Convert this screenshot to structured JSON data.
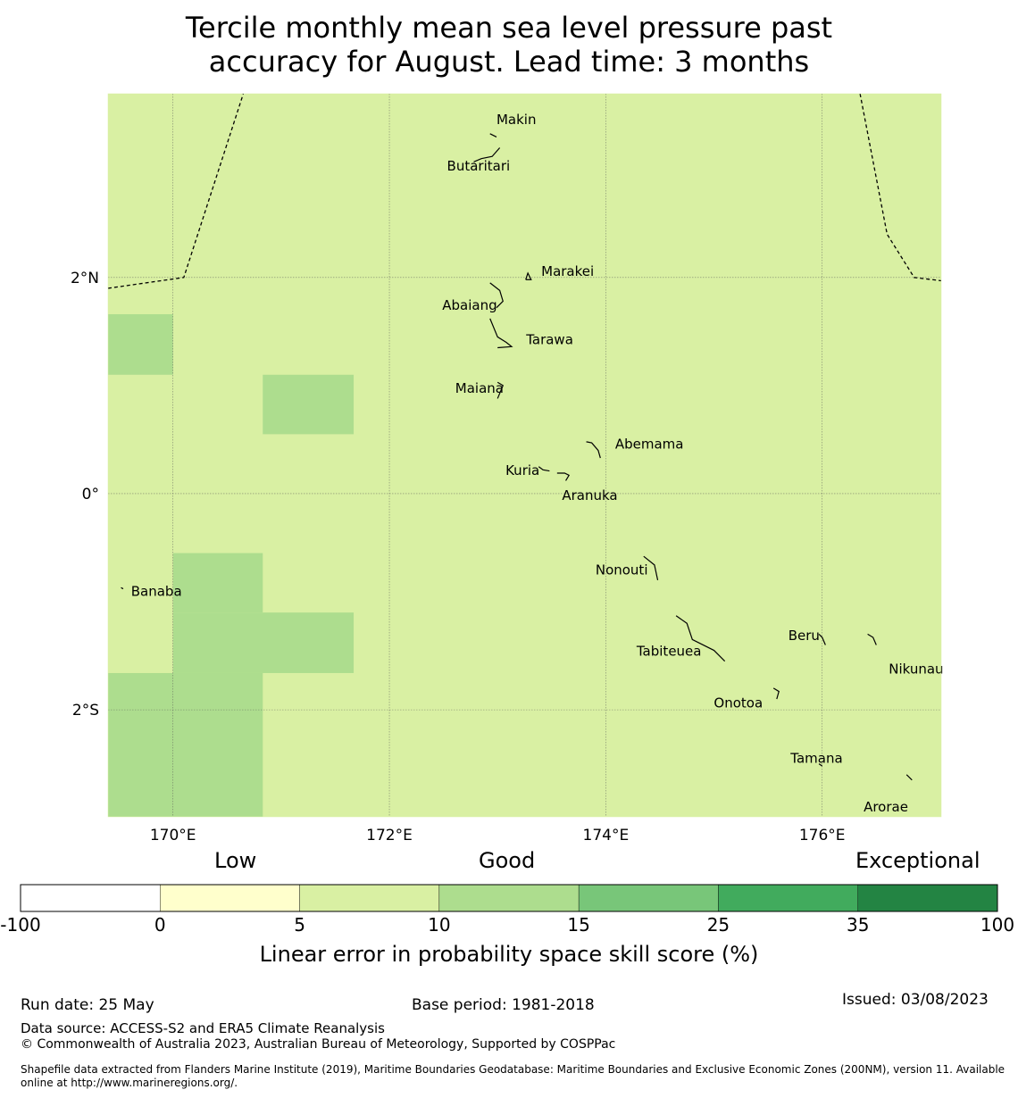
{
  "title": {
    "line1": "Tercile monthly mean sea level pressure past",
    "line2": "accuracy for August. Lead time: 3 months"
  },
  "map": {
    "extent": {
      "lon_min": 169.4,
      "lon_max": 177.1,
      "lat_min": -2.99,
      "lat_max": 3.7
    },
    "background_color": "#d9f0a3",
    "lon_ticks": [
      {
        "value": 170,
        "label": "170°E"
      },
      {
        "value": 172,
        "label": "172°E"
      },
      {
        "value": 174,
        "label": "174°E"
      },
      {
        "value": 176,
        "label": "176°E"
      }
    ],
    "lat_ticks": [
      {
        "value": 2,
        "label": "2°N"
      },
      {
        "value": 0,
        "label": "0°"
      },
      {
        "value": -2,
        "label": "2°S"
      }
    ],
    "cells": [
      {
        "lon0": 169.4,
        "lon1": 170.0,
        "lat0": 1.1,
        "lat1": 1.66,
        "color": "#addd8e"
      },
      {
        "lon0": 170.83,
        "lon1": 171.67,
        "lat0": 0.55,
        "lat1": 1.1,
        "color": "#addd8e"
      },
      {
        "lon0": 170.0,
        "lon1": 170.83,
        "lat0": -1.1,
        "lat1": -0.55,
        "color": "#addd8e"
      },
      {
        "lon0": 170.0,
        "lon1": 171.67,
        "lat0": -1.66,
        "lat1": -1.1,
        "color": "#addd8e"
      },
      {
        "lon0": 169.4,
        "lon1": 170.83,
        "lat0": -2.99,
        "lat1": -1.66,
        "color": "#addd8e"
      }
    ],
    "boundaries": [
      [
        [
          169.4,
          1.9
        ],
        [
          170.1,
          2.0
        ],
        [
          170.65,
          3.7
        ]
      ],
      [
        [
          176.35,
          3.7
        ],
        [
          176.6,
          2.4
        ],
        [
          176.85,
          2.0
        ],
        [
          177.1,
          1.97
        ]
      ]
    ],
    "islands": [
      {
        "name": "Makin",
        "lon": 172.99,
        "lat": 3.37,
        "shape": [
          [
            172.93,
            3.33
          ],
          [
            172.99,
            3.3
          ]
        ]
      },
      {
        "name": "Butaritari",
        "lon": 172.78,
        "lat": 3.17,
        "shape": [
          [
            172.78,
            3.07
          ],
          [
            172.85,
            3.1
          ],
          [
            172.95,
            3.12
          ],
          [
            173.02,
            3.2
          ]
        ]
      },
      {
        "name": "Marakei",
        "lon": 173.28,
        "lat": 2.0,
        "shape": [
          [
            173.26,
            1.98
          ],
          [
            173.28,
            2.04
          ],
          [
            173.31,
            1.98
          ],
          [
            173.26,
            1.98
          ]
        ]
      },
      {
        "name": "Abaiang",
        "lon": 172.86,
        "lat": 1.85,
        "shape": [
          [
            172.93,
            1.95
          ],
          [
            173.02,
            1.88
          ],
          [
            173.05,
            1.78
          ],
          [
            172.99,
            1.72
          ]
        ]
      },
      {
        "name": "Tarawa",
        "lon": 173.0,
        "lat": 1.4,
        "shape": [
          [
            172.93,
            1.62
          ],
          [
            173.0,
            1.45
          ],
          [
            173.08,
            1.4
          ],
          [
            173.13,
            1.36
          ],
          [
            173.0,
            1.35
          ]
        ]
      },
      {
        "name": "Maiana",
        "lon": 172.98,
        "lat": 1.0,
        "shape": [
          [
            173.0,
            1.03
          ],
          [
            173.05,
            1.0
          ],
          [
            173.0,
            0.88
          ]
        ]
      },
      {
        "name": "Abemama",
        "lon": 173.88,
        "lat": 0.45,
        "shape": [
          [
            173.82,
            0.48
          ],
          [
            173.87,
            0.47
          ],
          [
            173.93,
            0.4
          ],
          [
            173.95,
            0.33
          ]
        ]
      },
      {
        "name": "Kuria",
        "lon": 173.42,
        "lat": 0.23,
        "shape": [
          [
            173.38,
            0.25
          ],
          [
            173.42,
            0.22
          ],
          [
            173.48,
            0.21
          ]
        ]
      },
      {
        "name": "Aranuka",
        "lon": 173.62,
        "lat": 0.18,
        "shape": [
          [
            173.55,
            0.19
          ],
          [
            173.62,
            0.19
          ],
          [
            173.66,
            0.17
          ],
          [
            173.63,
            0.12
          ]
        ]
      },
      {
        "name": "Nonouti",
        "lon": 174.4,
        "lat": -0.6,
        "shape": [
          [
            174.35,
            -0.58
          ],
          [
            174.45,
            -0.66
          ],
          [
            174.48,
            -0.8
          ]
        ]
      },
      {
        "name": "Banaba",
        "lon": 169.53,
        "lat": -0.87,
        "shape": [
          [
            169.52,
            -0.87
          ],
          [
            169.54,
            -0.88
          ]
        ]
      },
      {
        "name": "Beru",
        "lon": 176.0,
        "lat": -1.33,
        "shape": [
          [
            175.97,
            -1.3
          ],
          [
            176.0,
            -1.33
          ],
          [
            176.03,
            -1.4
          ]
        ]
      },
      {
        "name": "Nikunau",
        "lon": 176.45,
        "lat": -1.35,
        "shape": [
          [
            176.42,
            -1.3
          ],
          [
            176.47,
            -1.33
          ],
          [
            176.5,
            -1.4
          ]
        ]
      },
      {
        "name": "Tabiteuea",
        "lon": 174.78,
        "lat": -1.35,
        "shape": [
          [
            174.65,
            -1.13
          ],
          [
            174.75,
            -1.2
          ],
          [
            174.8,
            -1.35
          ],
          [
            175.0,
            -1.45
          ],
          [
            175.1,
            -1.55
          ]
        ]
      },
      {
        "name": "Onotoa",
        "lon": 175.56,
        "lat": -1.83,
        "shape": [
          [
            175.55,
            -1.8
          ],
          [
            175.6,
            -1.83
          ],
          [
            175.58,
            -1.9
          ]
        ]
      },
      {
        "name": "Tamana",
        "lon": 175.98,
        "lat": -2.5,
        "shape": [
          [
            175.97,
            -2.5
          ],
          [
            176.0,
            -2.52
          ]
        ]
      },
      {
        "name": "Arorae",
        "lon": 176.82,
        "lat": -2.62,
        "shape": [
          [
            176.78,
            -2.6
          ],
          [
            176.83,
            -2.65
          ]
        ]
      }
    ]
  },
  "colorbar": {
    "categories": [
      "Low",
      "Good",
      "Exceptional"
    ],
    "bins": [
      {
        "from": -100,
        "to": 0,
        "color": "#ffffff"
      },
      {
        "from": 0,
        "to": 5,
        "color": "#ffffcc"
      },
      {
        "from": 5,
        "to": 10,
        "color": "#d9f0a3"
      },
      {
        "from": 10,
        "to": 15,
        "color": "#addd8e"
      },
      {
        "from": 15,
        "to": 25,
        "color": "#78c679"
      },
      {
        "from": 25,
        "to": 35,
        "color": "#41ab5d"
      },
      {
        "from": 35,
        "to": 100,
        "color": "#238443"
      }
    ],
    "tick_labels": [
      "-100",
      "0",
      "5",
      "10",
      "15",
      "25",
      "35",
      "100"
    ],
    "label": "Linear error in probability space skill score (%)"
  },
  "footer": {
    "run_date": "Run date: 25 May",
    "base_period": "Base period: 1981-2018",
    "issued": "Issued: 03/08/2023",
    "data_source": "Data source: ACCESS-S2 and ERA5 Climate Reanalysis",
    "copyright": "© Commonwealth of Australia 2023, Australian Bureau of Meteorology, Supported by COSPPac",
    "shapefile_line1": "Shapefile data extracted from Flanders Marine Institute (2019), Maritime Boundaries Geodatabase: Maritime Boundaries and Exclusive Economic Zones (200NM), version 11. Available",
    "shapefile_line2": "online at http://www.marineregions.org/."
  }
}
